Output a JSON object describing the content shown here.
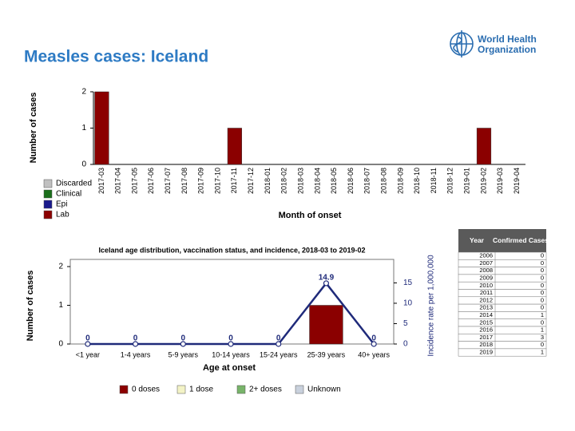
{
  "title": "Measles cases: Iceland",
  "logo": {
    "line1": "World Health",
    "line2": "Organization"
  },
  "chart_data": [
    {
      "type": "bar",
      "stacked": true,
      "x_label": "Month of onset",
      "y_label": "Number of cases",
      "categories": [
        "2017-03",
        "2017-04",
        "2017-05",
        "2017-06",
        "2017-07",
        "2017-08",
        "2017-09",
        "2017-10",
        "2017-11",
        "2017-12",
        "2018-01",
        "2018-02",
        "2018-03",
        "2018-04",
        "2018-05",
        "2018-06",
        "2018-07",
        "2018-08",
        "2018-09",
        "2018-10",
        "2018-11",
        "2018-12",
        "2019-01",
        "2019-02",
        "2019-03",
        "2019-04"
      ],
      "series": [
        {
          "name": "Discarded",
          "color": "#c0c0c0",
          "values": [
            0,
            0,
            0,
            0,
            0,
            0,
            0,
            0,
            0,
            0,
            0,
            0,
            0,
            0,
            0,
            0,
            0,
            0,
            0,
            0,
            0,
            0,
            0,
            0,
            0,
            0
          ]
        },
        {
          "name": "Clinical",
          "color": "#1a6e1a",
          "values": [
            0,
            0,
            0,
            0,
            0,
            0,
            0,
            0,
            0,
            0,
            0,
            0,
            0,
            0,
            0,
            0,
            0,
            0,
            0,
            0,
            0,
            0,
            0,
            0,
            0,
            0
          ]
        },
        {
          "name": "Epi",
          "color": "#1a1a8c",
          "values": [
            0,
            0,
            0,
            0,
            0,
            0,
            0,
            0,
            0,
            0,
            0,
            0,
            0,
            0,
            0,
            0,
            0,
            0,
            0,
            0,
            0,
            0,
            0,
            0,
            0,
            0
          ]
        },
        {
          "name": "Lab",
          "color": "#8b0000",
          "values": [
            2,
            0,
            0,
            0,
            0,
            0,
            0,
            0,
            1,
            0,
            0,
            0,
            0,
            0,
            0,
            0,
            0,
            0,
            0,
            0,
            0,
            0,
            0,
            1,
            0,
            0
          ]
        }
      ],
      "ylim": [
        0,
        2
      ],
      "yticks": [
        0,
        1,
        2
      ],
      "grid": false
    },
    {
      "type": "bar",
      "stacked": true,
      "title": "Iceland age distribution, vaccination status, and incidence, 2018-03 to 2019-02",
      "x_label": "Age at onset",
      "y_label": "Number of cases",
      "y2_label": "Incidence rate per 1,000,000",
      "categories": [
        "<1 year",
        "1-4 years",
        "5-9 years",
        "10-14 years",
        "15-24 years",
        "25-39 years",
        "40+ years"
      ],
      "series": [
        {
          "name": "0 doses",
          "color": "#8b0000",
          "values": [
            0,
            0,
            0,
            0,
            0,
            1,
            0
          ]
        },
        {
          "name": "1 dose",
          "color": "#f3f3c6",
          "values": [
            0,
            0,
            0,
            0,
            0,
            0,
            0
          ]
        },
        {
          "name": "2+ doses",
          "color": "#78b46a",
          "values": [
            0,
            0,
            0,
            0,
            0,
            0,
            0
          ]
        },
        {
          "name": "Unknown",
          "color": "#c9d1dd",
          "values": [
            0,
            0,
            0,
            0,
            0,
            0,
            0
          ]
        },
        {
          "type": "line",
          "axis": "y2",
          "color": "#1f2a7a",
          "values": [
            0,
            0,
            0,
            0,
            0,
            14.9,
            0
          ]
        }
      ],
      "ylim": [
        0,
        2
      ],
      "yticks": [
        0,
        1,
        2
      ],
      "y2lim": [
        0,
        19
      ],
      "y2ticks": [
        0,
        5,
        10,
        15
      ],
      "grid": false
    }
  ],
  "table": {
    "header": [
      "Year",
      "Confirmed Cases"
    ],
    "rows": [
      [
        "2006",
        0
      ],
      [
        "2007",
        0
      ],
      [
        "2008",
        0
      ],
      [
        "2009",
        0
      ],
      [
        "2010",
        0
      ],
      [
        "2011",
        0
      ],
      [
        "2012",
        0
      ],
      [
        "2013",
        0
      ],
      [
        "2014",
        1
      ],
      [
        "2015",
        0
      ],
      [
        "2016",
        1
      ],
      [
        "2017",
        3
      ],
      [
        "2018",
        0
      ],
      [
        "2019",
        1
      ]
    ]
  }
}
